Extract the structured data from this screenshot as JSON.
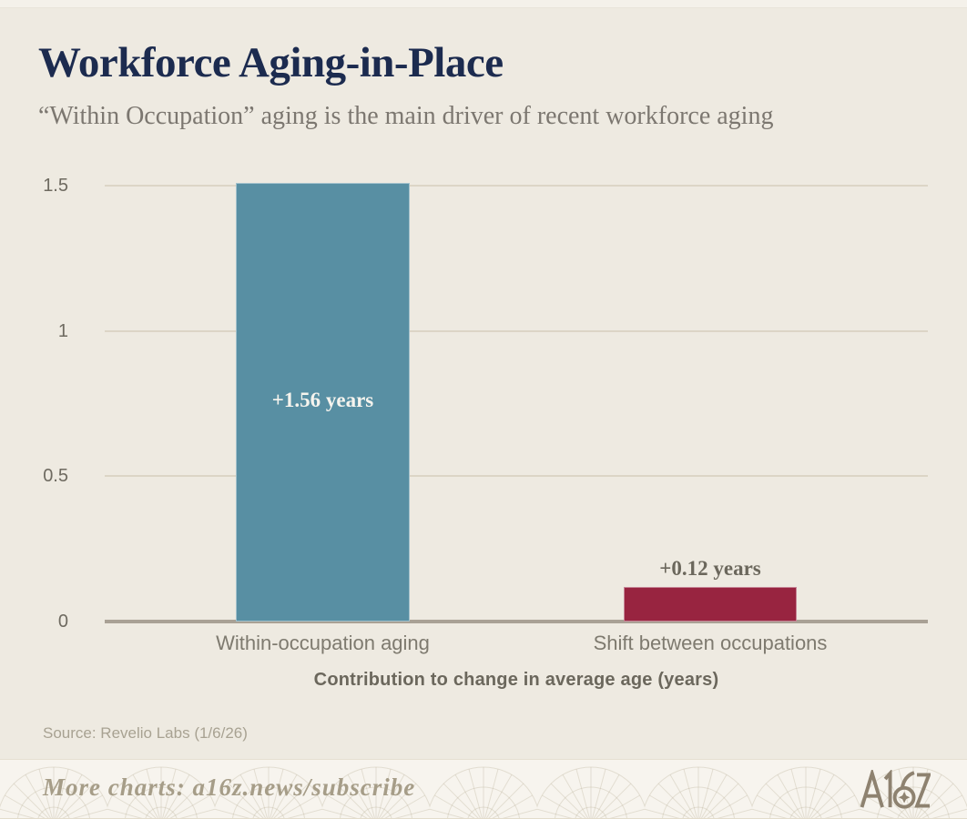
{
  "header": {
    "title": "Workforce Aging-in-Place",
    "subtitle": "“Within Occupation” aging is the main driver of recent workforce aging"
  },
  "chart_data": {
    "type": "bar",
    "title": "Workforce Aging-in-Place",
    "subtitle": "“Within Occupation” aging is the main driver of recent workforce aging",
    "categories": [
      "Within-occupation aging",
      "Shift between occupations"
    ],
    "values": [
      1.56,
      0.12
    ],
    "bar_labels": [
      "+1.56 years",
      "+0.12 years"
    ],
    "bar_colors": [
      "#588fa3",
      "#982440"
    ],
    "xlabel": "Contribution to change in average age (years)",
    "ylabel": "",
    "yticks": [
      0,
      0.5,
      1,
      1.5
    ],
    "ytick_labels": [
      "0",
      "0.5",
      "1",
      "1.5"
    ],
    "ylim": [
      0,
      1.56
    ],
    "grid": true,
    "legend": false
  },
  "source": {
    "text": "Source: Revelio Labs (1/6/26)"
  },
  "footer": {
    "more_text": "More charts: a16z.news/subscribe",
    "logo": "A16Z"
  },
  "colors": {
    "background": "#eeeae1",
    "footer_background": "#f7f4ee",
    "title_navy": "#1c2b4f",
    "bar_teal": "#588fa3",
    "bar_maroon": "#982440",
    "axis_line": "#a9a195",
    "gridline": "#dcd5c6",
    "muted_text": "#6b675c",
    "logo_taupe": "#8e8270"
  }
}
